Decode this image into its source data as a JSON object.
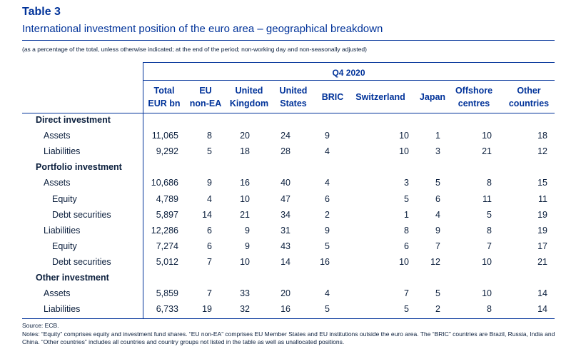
{
  "title": "Table 3",
  "subtitle": "International investment position of the euro area – geographical breakdown",
  "note": "(as a percentage of the total, unless otherwise indicated; at the end of the period; non-working day and non-seasonally adjusted)",
  "period": "Q4 2020",
  "columns": [
    {
      "line1": "Total",
      "line2": "EUR bn"
    },
    {
      "line1": "EU",
      "line2": "non-EA"
    },
    {
      "line1": "United",
      "line2": "Kingdom"
    },
    {
      "line1": "United",
      "line2": "States"
    },
    {
      "line1": "BRIC",
      "line2": ""
    },
    {
      "line1": "Switzerland",
      "line2": ""
    },
    {
      "line1": "Japan",
      "line2": ""
    },
    {
      "line1": "Offshore",
      "line2": "centres"
    },
    {
      "line1": "Other",
      "line2": "countries"
    }
  ],
  "rows": [
    {
      "label": "Direct investment",
      "level": 0,
      "section": true,
      "values": []
    },
    {
      "label": "Assets",
      "level": 1,
      "section": false,
      "values": [
        "11,065",
        "8",
        "20",
        "24",
        "9",
        "10",
        "1",
        "10",
        "18"
      ]
    },
    {
      "label": "Liabilities",
      "level": 1,
      "section": false,
      "values": [
        "9,292",
        "5",
        "18",
        "28",
        "4",
        "10",
        "3",
        "21",
        "12"
      ]
    },
    {
      "label": "Portfolio investment",
      "level": 0,
      "section": true,
      "values": []
    },
    {
      "label": "Assets",
      "level": 1,
      "section": false,
      "values": [
        "10,686",
        "9",
        "16",
        "40",
        "4",
        "3",
        "5",
        "8",
        "15"
      ]
    },
    {
      "label": "Equity",
      "level": 2,
      "section": false,
      "values": [
        "4,789",
        "4",
        "10",
        "47",
        "6",
        "5",
        "6",
        "11",
        "11"
      ]
    },
    {
      "label": "Debt securities",
      "level": 2,
      "section": false,
      "values": [
        "5,897",
        "14",
        "21",
        "34",
        "2",
        "1",
        "4",
        "5",
        "19"
      ]
    },
    {
      "label": "Liabilities",
      "level": 1,
      "section": false,
      "values": [
        "12,286",
        "6",
        "9",
        "31",
        "9",
        "8",
        "9",
        "8",
        "19"
      ]
    },
    {
      "label": "Equity",
      "level": 2,
      "section": false,
      "values": [
        "7,274",
        "6",
        "9",
        "43",
        "5",
        "6",
        "7",
        "7",
        "17"
      ]
    },
    {
      "label": "Debt securities",
      "level": 2,
      "section": false,
      "values": [
        "5,012",
        "7",
        "10",
        "14",
        "16",
        "10",
        "12",
        "10",
        "21"
      ]
    },
    {
      "label": "Other investment",
      "level": 0,
      "section": true,
      "values": []
    },
    {
      "label": "Assets",
      "level": 1,
      "section": false,
      "values": [
        "5,859",
        "7",
        "33",
        "20",
        "4",
        "7",
        "5",
        "10",
        "14"
      ]
    },
    {
      "label": "Liabilities",
      "level": 1,
      "section": false,
      "values": [
        "6,733",
        "19",
        "32",
        "16",
        "5",
        "5",
        "2",
        "8",
        "14"
      ]
    }
  ],
  "source": "Source: ECB.",
  "notes": "Notes: “Equity” comprises equity and investment fund shares. “EU non-EA” comprises EU Member States and EU institutions outside the euro area. The “BRIC” countries are Brazil, Russia, India and China. “Other countries” includes all countries and country groups not listed in the table as well as unallocated positions."
}
